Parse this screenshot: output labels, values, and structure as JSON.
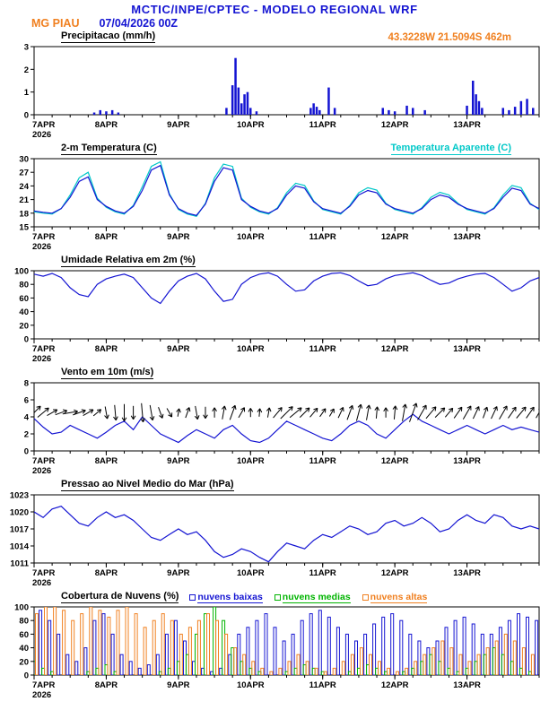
{
  "header": {
    "title": "MCTIC/INPE/CPTEC - MODELO REGIONAL WRF",
    "station": "MG PIAU",
    "run": "07/04/2026 00Z",
    "location": "43.3228W 21.5094S 462m"
  },
  "colors": {
    "blue": "#1414d2",
    "cyan": "#00c8c8",
    "orange": "#f08020",
    "green": "#00b400",
    "black": "#000000"
  },
  "axis": {
    "hours_total": 168,
    "minor_step": 6,
    "day_ticks": [
      {
        "h": 0,
        "label": "7APR",
        "sub": "2026"
      },
      {
        "h": 24,
        "label": "8APR"
      },
      {
        "h": 48,
        "label": "9APR"
      },
      {
        "h": 72,
        "label": "10APR"
      },
      {
        "h": 96,
        "label": "11APR"
      },
      {
        "h": 120,
        "label": "12APR"
      },
      {
        "h": 144,
        "label": "13APR"
      }
    ]
  },
  "chart_data": [
    {
      "id": "precip",
      "type": "bar",
      "title": "Precipitacao (mm/h)",
      "ylim": [
        0,
        3
      ],
      "yticks": [
        0,
        1,
        2,
        3
      ],
      "color": "blue",
      "bars": [
        [
          20,
          0.1
        ],
        [
          22,
          0.2
        ],
        [
          24,
          0.15
        ],
        [
          26,
          0.2
        ],
        [
          28,
          0.1
        ],
        [
          64,
          0.3
        ],
        [
          66,
          1.3
        ],
        [
          67,
          2.5
        ],
        [
          68,
          1.2
        ],
        [
          69,
          0.5
        ],
        [
          70,
          0.9
        ],
        [
          71,
          1.0
        ],
        [
          72,
          0.3
        ],
        [
          74,
          0.15
        ],
        [
          92,
          0.3
        ],
        [
          93,
          0.5
        ],
        [
          94,
          0.35
        ],
        [
          95,
          0.2
        ],
        [
          98,
          1.2
        ],
        [
          100,
          0.3
        ],
        [
          116,
          0.3
        ],
        [
          118,
          0.2
        ],
        [
          120,
          0.15
        ],
        [
          124,
          0.4
        ],
        [
          126,
          0.3
        ],
        [
          130,
          0.2
        ],
        [
          144,
          0.4
        ],
        [
          146,
          1.5
        ],
        [
          147,
          0.9
        ],
        [
          148,
          0.6
        ],
        [
          149,
          0.3
        ],
        [
          156,
          0.3
        ],
        [
          158,
          0.2
        ],
        [
          160,
          0.35
        ],
        [
          162,
          0.6
        ],
        [
          164,
          0.7
        ],
        [
          166,
          0.3
        ]
      ]
    },
    {
      "id": "temp",
      "type": "line",
      "title": "2-m Temperatura (C)",
      "right_label": "Temperatura Aparente (C)",
      "ylim": [
        15,
        30
      ],
      "yticks": [
        15,
        18,
        21,
        24,
        27,
        30
      ],
      "x_step": 3,
      "series": [
        {
          "name": "2-m Temperatura (C)",
          "color": "blue",
          "values": [
            18.5,
            18.2,
            18.0,
            19.0,
            21.5,
            25.0,
            26.0,
            21.0,
            19.5,
            18.5,
            18.0,
            19.5,
            23.0,
            27.5,
            28.5,
            22.0,
            19.0,
            18.0,
            17.5,
            20.0,
            25.0,
            28.0,
            27.5,
            21.0,
            19.5,
            18.5,
            18.0,
            19.0,
            22.0,
            24.0,
            23.5,
            20.5,
            19.0,
            18.5,
            18.0,
            19.5,
            22.0,
            23.0,
            22.5,
            20.0,
            19.0,
            18.5,
            18.0,
            19.0,
            21.0,
            22.0,
            21.5,
            20.0,
            19.0,
            18.5,
            18.0,
            19.0,
            21.5,
            23.5,
            23.0,
            20.0,
            19.0
          ]
        },
        {
          "name": "Temperatura Aparente (C)",
          "color": "cyan",
          "values": [
            18.3,
            18.0,
            17.8,
            19.0,
            22.0,
            25.8,
            27.0,
            21.3,
            19.3,
            18.3,
            17.8,
            19.7,
            23.8,
            28.3,
            29.3,
            22.3,
            18.8,
            17.8,
            17.3,
            20.2,
            25.8,
            28.8,
            28.3,
            21.3,
            19.3,
            18.3,
            17.8,
            19.2,
            22.5,
            24.6,
            24.1,
            20.7,
            18.8,
            18.3,
            17.8,
            19.7,
            22.5,
            23.6,
            23.1,
            20.2,
            18.8,
            18.3,
            17.8,
            19.2,
            21.5,
            22.6,
            22.0,
            20.2,
            18.8,
            18.3,
            17.8,
            19.2,
            22.0,
            24.1,
            23.6,
            20.2,
            18.8
          ]
        }
      ]
    },
    {
      "id": "rh",
      "type": "line",
      "title": "Umidade Relativa em 2m (%)",
      "ylim": [
        0,
        100
      ],
      "yticks": [
        0,
        20,
        40,
        60,
        80,
        100
      ],
      "x_step": 3,
      "series": [
        {
          "name": "Umidade Relativa",
          "color": "blue",
          "values": [
            95,
            92,
            96,
            90,
            75,
            65,
            62,
            80,
            88,
            92,
            95,
            90,
            75,
            60,
            52,
            70,
            85,
            92,
            96,
            88,
            70,
            55,
            58,
            80,
            90,
            95,
            97,
            92,
            80,
            70,
            72,
            85,
            92,
            96,
            97,
            93,
            85,
            78,
            80,
            88,
            93,
            95,
            97,
            93,
            86,
            80,
            82,
            88,
            92,
            95,
            96,
            90,
            80,
            70,
            75,
            85,
            90
          ]
        }
      ]
    },
    {
      "id": "wind",
      "type": "wind",
      "title": "Vento em 10m (m/s)",
      "ylim": [
        0,
        8
      ],
      "yticks": [
        0,
        2,
        4,
        6,
        8
      ],
      "x_step": 3,
      "series": [
        {
          "name": "Vento 10m",
          "color": "blue",
          "values": [
            3.8,
            2.8,
            2.0,
            2.2,
            3.0,
            2.5,
            2.0,
            1.5,
            2.2,
            3.0,
            3.5,
            2.5,
            4.0,
            3.0,
            2.0,
            1.5,
            1.0,
            1.8,
            2.5,
            2.0,
            1.5,
            2.5,
            3.0,
            2.0,
            1.2,
            1.0,
            1.5,
            2.5,
            3.5,
            3.0,
            2.5,
            2.0,
            1.5,
            1.2,
            2.0,
            3.0,
            3.5,
            3.0,
            2.0,
            1.5,
            2.5,
            3.5,
            4.3,
            3.5,
            3.0,
            2.5,
            2.0,
            2.5,
            3.0,
            2.5,
            2.0,
            2.5,
            3.0,
            2.5,
            2.8,
            2.5,
            2.2
          ]
        }
      ],
      "arrows": {
        "y": 4.5,
        "color": "black",
        "dirs": [
          45,
          50,
          60,
          70,
          80,
          70,
          60,
          50,
          170,
          175,
          180,
          180,
          175,
          170,
          160,
          150,
          10,
          20,
          170,
          180,
          0,
          10,
          20,
          30,
          0,
          5,
          10,
          40,
          45,
          50,
          45,
          40,
          35,
          30,
          25,
          20,
          15,
          10,
          5,
          0,
          5,
          10,
          20,
          30,
          40,
          45,
          40,
          35,
          30,
          25,
          20,
          25,
          30,
          35,
          40,
          35,
          30
        ]
      }
    },
    {
      "id": "slp",
      "type": "line",
      "title": "Pressao ao Nivel Medio do Mar (hPa)",
      "ylim": [
        1011,
        1023
      ],
      "yticks": [
        1011,
        1014,
        1017,
        1020,
        1023
      ],
      "x_step": 3,
      "series": [
        {
          "name": "Pressao",
          "color": "blue",
          "values": [
            1020,
            1019,
            1020.5,
            1021,
            1019.5,
            1018,
            1017.5,
            1019,
            1020,
            1019,
            1019.5,
            1018.5,
            1017,
            1015.5,
            1015,
            1016,
            1017,
            1016,
            1016.5,
            1015,
            1013,
            1012,
            1012.5,
            1013.5,
            1013,
            1012,
            1011.2,
            1013,
            1014.5,
            1014,
            1013.5,
            1015,
            1016,
            1015.5,
            1016.5,
            1017.5,
            1017,
            1016,
            1016.5,
            1018,
            1018.5,
            1017.5,
            1018,
            1019,
            1018,
            1016.5,
            1017,
            1018.5,
            1019.5,
            1018.5,
            1018,
            1019.5,
            1019,
            1017.5,
            1017,
            1017.5,
            1017
          ]
        }
      ]
    },
    {
      "id": "clouds",
      "type": "grouped-bar",
      "title": "Cobertura de Nuvens (%)",
      "ylim": [
        0,
        100
      ],
      "yticks": [
        0,
        20,
        40,
        60,
        80,
        100
      ],
      "x_step": 3,
      "legend": [
        {
          "label": "nuvens baixas",
          "color": "blue"
        },
        {
          "label": "nuvens medias",
          "color": "green"
        },
        {
          "label": "nuvens altas",
          "color": "orange"
        }
      ],
      "series": [
        {
          "name": "nuvens baixas",
          "color": "blue",
          "values": [
            100,
            95,
            80,
            60,
            30,
            20,
            40,
            80,
            90,
            60,
            30,
            20,
            10,
            15,
            30,
            60,
            80,
            50,
            20,
            10,
            5,
            10,
            30,
            60,
            70,
            80,
            90,
            70,
            50,
            60,
            80,
            90,
            95,
            85,
            70,
            60,
            50,
            60,
            75,
            85,
            90,
            80,
            60,
            50,
            40,
            50,
            70,
            80,
            85,
            75,
            60,
            60,
            70,
            80,
            90,
            85,
            80
          ]
        },
        {
          "name": "nuvens medias",
          "color": "green",
          "values": [
            20,
            10,
            5,
            0,
            0,
            0,
            5,
            10,
            15,
            5,
            0,
            0,
            0,
            0,
            5,
            10,
            20,
            30,
            60,
            90,
            100,
            80,
            40,
            20,
            10,
            5,
            0,
            0,
            5,
            10,
            15,
            10,
            5,
            0,
            0,
            5,
            10,
            15,
            10,
            5,
            0,
            5,
            10,
            20,
            30,
            20,
            10,
            5,
            10,
            20,
            30,
            40,
            30,
            20,
            10,
            5,
            0
          ]
        },
        {
          "name": "nuvens altas",
          "color": "orange",
          "values": [
            90,
            100,
            100,
            95,
            80,
            90,
            100,
            95,
            85,
            95,
            100,
            90,
            70,
            80,
            90,
            80,
            60,
            70,
            80,
            90,
            80,
            60,
            40,
            30,
            20,
            10,
            5,
            10,
            20,
            30,
            20,
            10,
            5,
            10,
            20,
            30,
            40,
            30,
            20,
            10,
            5,
            10,
            20,
            30,
            40,
            50,
            40,
            30,
            20,
            30,
            40,
            50,
            60,
            50,
            40,
            30,
            20
          ]
        }
      ]
    }
  ]
}
